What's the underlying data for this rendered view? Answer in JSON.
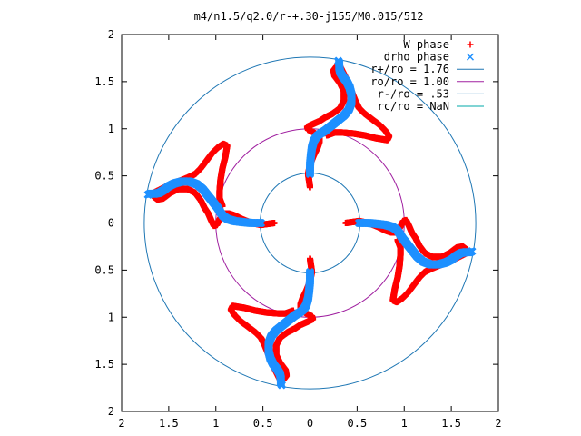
{
  "chart_data": {
    "type": "scatter",
    "title": "m4/n1.5/q2.0/r-+.30-j155/M0.015/512",
    "xlabel": "",
    "ylabel": "",
    "xlim": [
      -2,
      2
    ],
    "ylim": [
      -2,
      2
    ],
    "x_ticks": [
      -2,
      -1.5,
      -1,
      -0.5,
      0,
      0.5,
      1,
      1.5,
      2
    ],
    "y_ticks": [
      -2,
      -1.5,
      -1,
      -0.5,
      0,
      0.5,
      1,
      1.5,
      2
    ],
    "x_tick_labels": [
      "2",
      "1.5",
      "1",
      "0.5",
      "0",
      "0.5",
      "1",
      "1.5",
      "2"
    ],
    "y_tick_labels": [
      "2",
      "1.5",
      "1",
      "0.5",
      "0",
      "0.5",
      "1",
      "1.5",
      "2"
    ],
    "grid": false,
    "legend_position": "top-right",
    "series": [
      {
        "name": "W phase",
        "marker": "+",
        "color": "#ff0000",
        "arm_points": [
          [
            0.38,
            0.0
          ],
          [
            0.52,
            0.02
          ],
          [
            0.62,
            0.0
          ],
          [
            0.72,
            -0.04
          ],
          [
            0.8,
            -0.08
          ],
          [
            0.86,
            -0.1
          ],
          [
            0.92,
            -0.1
          ],
          [
            0.96,
            -0.04
          ],
          [
            0.99,
            0.02
          ],
          [
            1.02,
            0.03
          ],
          [
            1.05,
            -0.03
          ],
          [
            1.08,
            -0.1
          ],
          [
            1.12,
            -0.16
          ],
          [
            1.16,
            -0.24
          ],
          [
            1.22,
            -0.32
          ],
          [
            1.3,
            -0.36
          ],
          [
            1.4,
            -0.36
          ],
          [
            1.48,
            -0.32
          ],
          [
            1.56,
            -0.26
          ],
          [
            1.62,
            -0.25
          ],
          [
            1.66,
            -0.28
          ],
          [
            1.68,
            -0.31
          ],
          [
            1.6,
            -0.35
          ],
          [
            1.5,
            -0.4
          ],
          [
            1.4,
            -0.44
          ],
          [
            1.3,
            -0.48
          ],
          [
            1.22,
            -0.52
          ],
          [
            1.16,
            -0.58
          ],
          [
            1.1,
            -0.66
          ],
          [
            1.04,
            -0.74
          ],
          [
            0.98,
            -0.8
          ],
          [
            0.92,
            -0.84
          ],
          [
            0.88,
            -0.82
          ],
          [
            0.9,
            -0.7
          ],
          [
            0.93,
            -0.58
          ],
          [
            0.95,
            -0.46
          ],
          [
            0.96,
            -0.34
          ],
          [
            0.96,
            -0.26
          ],
          [
            0.93,
            -0.18
          ]
        ]
      },
      {
        "name": "drho phase",
        "marker": "x",
        "color": "#1e90ff",
        "arm_points": [
          [
            0.52,
            0.0
          ],
          [
            0.62,
            0.0
          ],
          [
            0.72,
            -0.01
          ],
          [
            0.8,
            -0.02
          ],
          [
            0.87,
            -0.04
          ],
          [
            0.92,
            -0.07
          ],
          [
            0.95,
            -0.11
          ],
          [
            0.98,
            -0.16
          ],
          [
            1.02,
            -0.21
          ],
          [
            1.06,
            -0.26
          ],
          [
            1.1,
            -0.31
          ],
          [
            1.14,
            -0.36
          ],
          [
            1.2,
            -0.41
          ],
          [
            1.28,
            -0.44
          ],
          [
            1.36,
            -0.44
          ],
          [
            1.44,
            -0.42
          ],
          [
            1.5,
            -0.39
          ],
          [
            1.55,
            -0.35
          ],
          [
            1.6,
            -0.32
          ],
          [
            1.65,
            -0.31
          ],
          [
            1.7,
            -0.31
          ],
          [
            1.72,
            -0.3
          ]
        ]
      }
    ],
    "circles": [
      {
        "name": "r+/ro = 1.76",
        "radius": 1.76,
        "color": "#1f77b4"
      },
      {
        "name": "ro/ro = 1.00",
        "radius": 1.0,
        "color": "#a020a0"
      },
      {
        "name": "r-/ro = .53",
        "radius": 0.53,
        "color": "#1f77b4"
      },
      {
        "name": "rc/ro = NaN",
        "radius": null,
        "color": "#00aaaa"
      }
    ],
    "symmetry": "4-fold rotational (arms repeated every 90 degrees)"
  }
}
